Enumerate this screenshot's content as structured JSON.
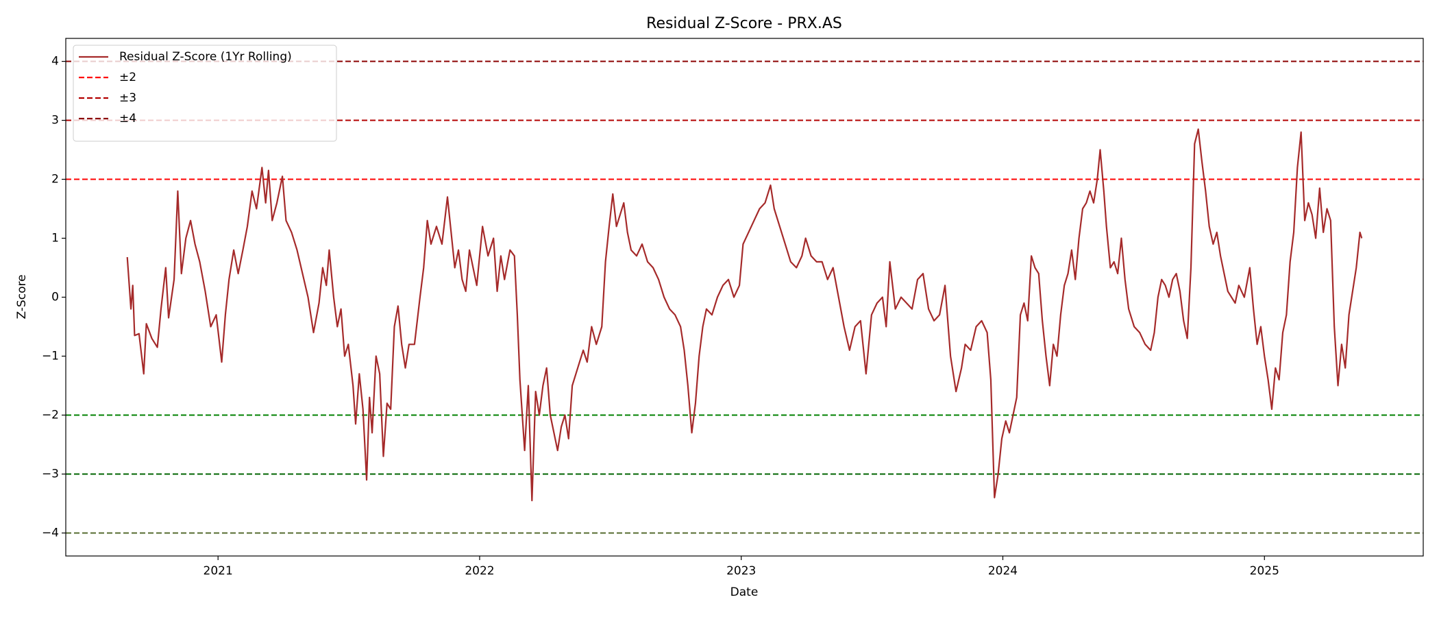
{
  "chart_data": {
    "type": "line",
    "title": "Residual Z-Score - PRX.AS",
    "x_label": "Date",
    "y_label": "Z-Score",
    "legend_loc": "upper left",
    "grid": false,
    "xlim": [
      2020.418,
      2025.607
    ],
    "ylim": [
      -4.39,
      4.39
    ],
    "xticks": [
      2021,
      2022,
      2023,
      2024,
      2025
    ],
    "yticks": [
      {
        "value": -4,
        "label": "−4"
      },
      {
        "value": -3,
        "label": "−3"
      },
      {
        "value": -2,
        "label": "−2"
      },
      {
        "value": -1,
        "label": "−1"
      },
      0,
      1,
      2,
      3,
      4
    ],
    "x": [
      2020.653,
      2020.667,
      2020.674,
      2020.681,
      2020.698,
      2020.716,
      2020.726,
      2020.747,
      2020.768,
      2020.782,
      2020.8,
      2020.811,
      2020.832,
      2020.846,
      2020.86,
      2020.877,
      2020.895,
      2020.912,
      2020.93,
      2020.951,
      2020.972,
      2020.993,
      2021.014,
      2021.028,
      2021.042,
      2021.06,
      2021.077,
      2021.095,
      2021.112,
      2021.13,
      2021.147,
      2021.168,
      2021.182,
      2021.193,
      2021.207,
      2021.225,
      2021.246,
      2021.26,
      2021.281,
      2021.302,
      2021.323,
      2021.344,
      2021.365,
      2021.386,
      2021.4,
      2021.414,
      2021.425,
      2021.442,
      2021.456,
      2021.47,
      2021.484,
      2021.498,
      2021.516,
      2021.526,
      2021.54,
      2021.554,
      2021.568,
      2021.579,
      2021.589,
      2021.604,
      2021.618,
      2021.632,
      2021.646,
      2021.66,
      2021.674,
      2021.688,
      2021.702,
      2021.716,
      2021.73,
      2021.751,
      2021.772,
      2021.786,
      2021.8,
      2021.814,
      2021.835,
      2021.856,
      2021.877,
      2021.891,
      2021.905,
      2021.919,
      2021.933,
      2021.947,
      2021.961,
      2021.975,
      2021.989,
      2022.011,
      2022.032,
      2022.053,
      2022.067,
      2022.081,
      2022.095,
      2022.116,
      2022.133,
      2022.144,
      2022.154,
      2022.172,
      2022.186,
      2022.2,
      2022.214,
      2022.228,
      2022.242,
      2022.256,
      2022.27,
      2022.284,
      2022.298,
      2022.312,
      2022.326,
      2022.34,
      2022.354,
      2022.368,
      2022.382,
      2022.396,
      2022.411,
      2022.428,
      2022.446,
      2022.467,
      2022.481,
      2022.495,
      2022.509,
      2022.523,
      2022.537,
      2022.551,
      2022.565,
      2022.579,
      2022.6,
      2022.621,
      2022.642,
      2022.663,
      2022.684,
      2022.705,
      2022.726,
      2022.747,
      2022.768,
      2022.782,
      2022.796,
      2022.811,
      2022.825,
      2022.839,
      2022.853,
      2022.867,
      2022.888,
      2022.909,
      2022.93,
      2022.951,
      2022.972,
      2022.993,
      2023.007,
      2023.028,
      2023.049,
      2023.07,
      2023.091,
      2023.112,
      2023.126,
      2023.147,
      2023.168,
      2023.189,
      2023.211,
      2023.232,
      2023.246,
      2023.267,
      2023.288,
      2023.309,
      2023.33,
      2023.351,
      2023.372,
      2023.393,
      2023.414,
      2023.435,
      2023.456,
      2023.477,
      2023.498,
      2023.519,
      2023.54,
      2023.554,
      2023.568,
      2023.589,
      2023.611,
      2023.632,
      2023.653,
      2023.674,
      2023.695,
      2023.716,
      2023.737,
      2023.758,
      2023.779,
      2023.8,
      2023.821,
      2023.842,
      2023.856,
      2023.877,
      2023.898,
      2023.919,
      2023.94,
      2023.954,
      2023.968,
      2023.982,
      2023.996,
      2024.011,
      2024.025,
      2024.039,
      2024.053,
      2024.067,
      2024.081,
      2024.095,
      2024.109,
      2024.123,
      2024.137,
      2024.151,
      2024.165,
      2024.179,
      2024.193,
      2024.207,
      2024.221,
      2024.235,
      2024.249,
      2024.263,
      2024.277,
      2024.291,
      2024.305,
      2024.319,
      2024.333,
      2024.347,
      2024.361,
      2024.372,
      2024.386,
      2024.396,
      2024.411,
      2024.425,
      2024.439,
      2024.453,
      2024.467,
      2024.481,
      2024.502,
      2024.523,
      2024.544,
      2024.565,
      2024.579,
      2024.593,
      2024.607,
      2024.621,
      2024.635,
      2024.649,
      2024.663,
      2024.677,
      2024.691,
      2024.705,
      2024.719,
      2024.733,
      2024.747,
      2024.761,
      2024.775,
      2024.789,
      2024.804,
      2024.818,
      2024.832,
      2024.846,
      2024.86,
      2024.874,
      2024.888,
      2024.902,
      2024.923,
      2024.944,
      2024.958,
      2024.972,
      2024.986,
      2025.0,
      2025.014,
      2025.028,
      2025.042,
      2025.056,
      2025.07,
      2025.084,
      2025.098,
      2025.112,
      2025.126,
      2025.14,
      2025.154,
      2025.168,
      2025.182,
      2025.196,
      2025.211,
      2025.225,
      2025.239,
      2025.253,
      2025.267,
      2025.281,
      2025.295,
      2025.309,
      2025.323,
      2025.337,
      2025.351,
      2025.365,
      2025.372
    ],
    "series": [
      {
        "name": "Residual Z-Score (1Yr Rolling)",
        "color": "#a52a2a",
        "values": [
          0.68,
          -0.2,
          0.2,
          -0.65,
          -0.62,
          -1.3,
          -0.45,
          -0.7,
          -0.85,
          -0.2,
          0.5,
          -0.35,
          0.3,
          1.8,
          0.4,
          1.0,
          1.3,
          0.9,
          0.6,
          0.1,
          -0.5,
          -0.3,
          -1.1,
          -0.3,
          0.3,
          0.8,
          0.4,
          0.8,
          1.2,
          1.8,
          1.5,
          2.2,
          1.6,
          2.15,
          1.3,
          1.6,
          2.05,
          1.3,
          1.1,
          0.8,
          0.4,
          0.0,
          -0.6,
          -0.1,
          0.5,
          0.2,
          0.8,
          0.0,
          -0.5,
          -0.2,
          -1.0,
          -0.8,
          -1.5,
          -2.15,
          -1.3,
          -1.9,
          -3.1,
          -1.7,
          -2.3,
          -1.0,
          -1.3,
          -2.7,
          -1.8,
          -1.9,
          -0.5,
          -0.15,
          -0.8,
          -1.2,
          -0.8,
          -0.8,
          0.0,
          0.5,
          1.3,
          0.9,
          1.2,
          0.9,
          1.7,
          1.1,
          0.5,
          0.8,
          0.3,
          0.1,
          0.8,
          0.5,
          0.2,
          1.2,
          0.7,
          1.0,
          0.1,
          0.7,
          0.3,
          0.8,
          0.7,
          -0.3,
          -1.4,
          -2.6,
          -1.5,
          -3.45,
          -1.6,
          -2.0,
          -1.5,
          -1.2,
          -2.0,
          -2.3,
          -2.6,
          -2.2,
          -2.0,
          -2.4,
          -1.5,
          -1.3,
          -1.1,
          -0.9,
          -1.1,
          -0.5,
          -0.8,
          -0.5,
          0.6,
          1.2,
          1.75,
          1.2,
          1.4,
          1.6,
          1.1,
          0.8,
          0.7,
          0.9,
          0.6,
          0.5,
          0.3,
          0.0,
          -0.2,
          -0.3,
          -0.5,
          -0.9,
          -1.5,
          -2.3,
          -1.8,
          -1.0,
          -0.5,
          -0.2,
          -0.3,
          0.0,
          0.2,
          0.3,
          0.0,
          0.2,
          0.9,
          1.1,
          1.3,
          1.5,
          1.6,
          1.9,
          1.5,
          1.2,
          0.9,
          0.6,
          0.5,
          0.7,
          1.0,
          0.7,
          0.6,
          0.6,
          0.3,
          0.5,
          0.0,
          -0.5,
          -0.9,
          -0.5,
          -0.4,
          -1.3,
          -0.3,
          -0.1,
          0.0,
          -0.5,
          0.6,
          -0.2,
          0.0,
          -0.1,
          -0.2,
          0.3,
          0.4,
          -0.2,
          -0.4,
          -0.3,
          0.2,
          -1.0,
          -1.6,
          -1.2,
          -0.8,
          -0.9,
          -0.5,
          -0.4,
          -0.6,
          -1.4,
          -3.4,
          -3.0,
          -2.4,
          -2.1,
          -2.3,
          -2.0,
          -1.7,
          -0.3,
          -0.1,
          -0.4,
          0.7,
          0.5,
          0.4,
          -0.4,
          -1.0,
          -1.5,
          -0.8,
          -1.0,
          -0.3,
          0.2,
          0.4,
          0.8,
          0.3,
          1.0,
          1.5,
          1.6,
          1.8,
          1.6,
          2.0,
          2.5,
          1.8,
          1.2,
          0.5,
          0.6,
          0.4,
          1.0,
          0.3,
          -0.2,
          -0.5,
          -0.6,
          -0.8,
          -0.9,
          -0.6,
          0.0,
          0.3,
          0.2,
          0.0,
          0.3,
          0.4,
          0.1,
          -0.4,
          -0.7,
          0.5,
          2.6,
          2.85,
          2.3,
          1.8,
          1.2,
          0.9,
          1.1,
          0.7,
          0.4,
          0.1,
          0.0,
          -0.1,
          0.2,
          0.0,
          0.5,
          -0.2,
          -0.8,
          -0.5,
          -1.0,
          -1.4,
          -1.9,
          -1.2,
          -1.4,
          -0.6,
          -0.3,
          0.6,
          1.1,
          2.2,
          2.8,
          1.3,
          1.6,
          1.4,
          1.0,
          1.85,
          1.1,
          1.5,
          1.3,
          -0.5,
          -1.5,
          -0.8,
          -1.2,
          -0.3,
          0.1,
          0.5,
          1.1,
          1.0
        ]
      }
    ],
    "hlines": [
      {
        "name": "±2",
        "color": "#ff0000",
        "value": 2
      },
      {
        "color": "#008000",
        "value": -2
      },
      {
        "name": "±3",
        "color": "#b30000",
        "value": 3
      },
      {
        "color": "#006400",
        "value": -3
      },
      {
        "name": "±4",
        "color": "#8b0000",
        "value": 4
      },
      {
        "color": "#556b2f",
        "value": -4
      }
    ]
  }
}
